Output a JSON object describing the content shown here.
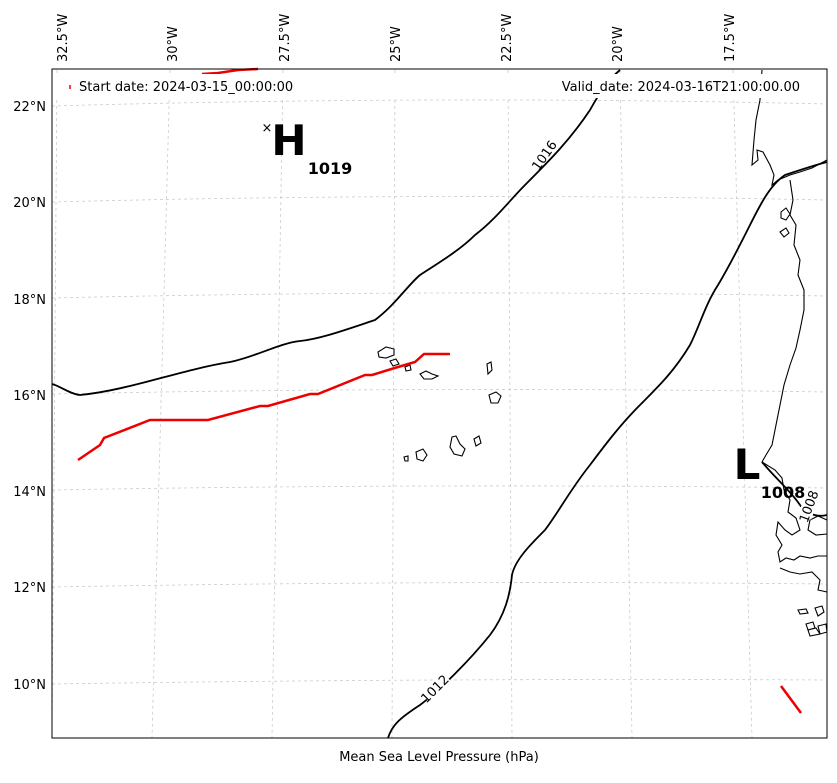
{
  "map": {
    "xlabel": "Mean Sea Level Pressure (hPa)",
    "start_label": "Start date: 2024-03-15_00:00:00",
    "valid_label": "Valid_date: 2024-03-16T21:00:00.00",
    "lon_ticks": [
      "32.5°W",
      "30°W",
      "27.5°W",
      "25°W",
      "22.5°W",
      "20°W",
      "17.5°W"
    ],
    "lat_ticks": [
      "22°N",
      "20°N",
      "18°N",
      "16°N",
      "14°N",
      "12°N",
      "10°N"
    ],
    "high": {
      "letter": "H",
      "value": "1019",
      "marker": "×"
    },
    "low": {
      "letter": "L",
      "value": "1008"
    },
    "contour_labels": [
      "1016",
      "1012",
      "1008"
    ],
    "colors": {
      "track": "#ee0000",
      "isobar": "#000000",
      "grid": "#cccccc"
    }
  }
}
